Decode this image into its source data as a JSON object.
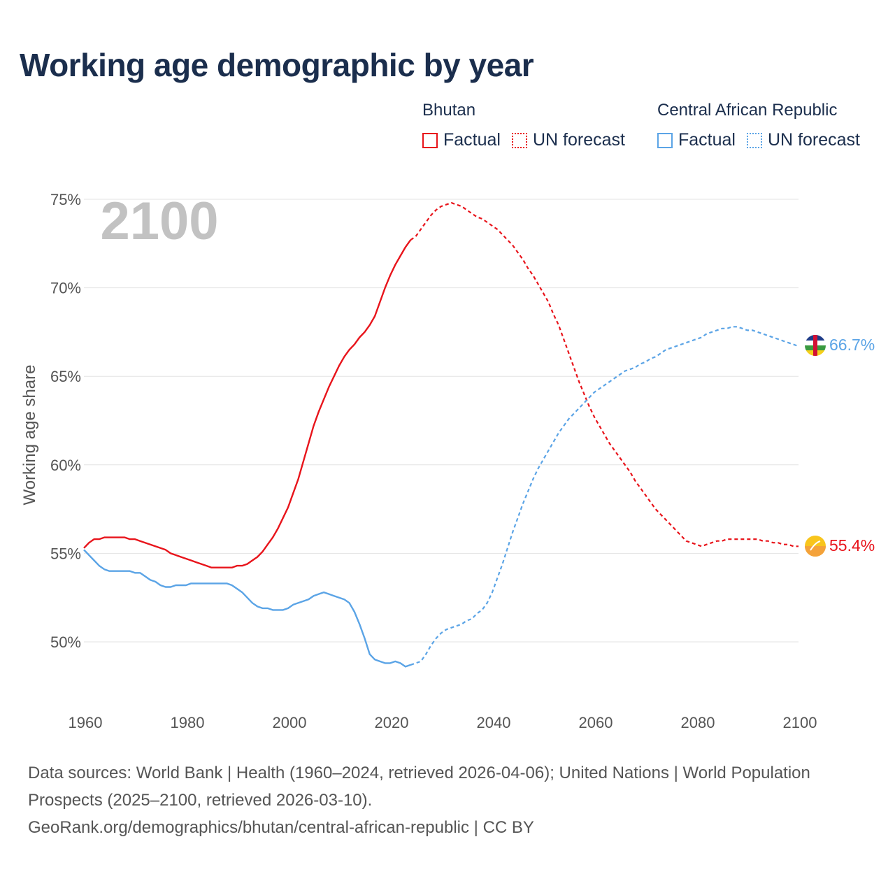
{
  "title": "Working age demographic by year",
  "legend": [
    {
      "country": "Bhutan",
      "factual_label": "Factual",
      "forecast_label": "UN forecast",
      "color": "#e8141b"
    },
    {
      "country": "Central African Republic",
      "factual_label": "Factual",
      "forecast_label": "UN forecast",
      "color": "#5ba4e6"
    }
  ],
  "year_watermark": "2100",
  "sources": {
    "line1": "Data sources: World Bank | Health (1960–2024, retrieved 2026-04-06); United Nations | World Population Prospects (2025–2100, retrieved 2026-03-10).",
    "line2": "GeoRank.org/demographics/bhutan/central-african-republic | CC BY"
  },
  "chart_data": {
    "type": "line",
    "title": "Working age demographic by year",
    "xlabel": "",
    "ylabel": "Working age share",
    "xlim": [
      1960,
      2100
    ],
    "ylim": [
      46.5,
      75
    ],
    "x_ticks": [
      1960,
      1980,
      2000,
      2020,
      2040,
      2060,
      2080,
      2100
    ],
    "x_tick_labels": [
      "1960",
      "1980",
      "2000",
      "2020",
      "2040",
      "2060",
      "2080",
      "2100"
    ],
    "y_ticks": [
      50,
      55,
      60,
      65,
      70,
      75
    ],
    "y_tick_labels": [
      "50%",
      "55%",
      "60%",
      "65%",
      "70%",
      "75%"
    ],
    "grid": true,
    "forecast_start": 2024,
    "series": [
      {
        "name": "Bhutan",
        "color": "#e8141b",
        "end_label": "55.4%",
        "points": [
          [
            1960,
            55.3
          ],
          [
            1961,
            55.6
          ],
          [
            1962,
            55.8
          ],
          [
            1963,
            55.8
          ],
          [
            1964,
            55.9
          ],
          [
            1965,
            55.9
          ],
          [
            1966,
            55.9
          ],
          [
            1967,
            55.9
          ],
          [
            1968,
            55.9
          ],
          [
            1969,
            55.8
          ],
          [
            1970,
            55.8
          ],
          [
            1971,
            55.7
          ],
          [
            1972,
            55.6
          ],
          [
            1973,
            55.5
          ],
          [
            1974,
            55.4
          ],
          [
            1975,
            55.3
          ],
          [
            1976,
            55.2
          ],
          [
            1977,
            55.0
          ],
          [
            1978,
            54.9
          ],
          [
            1979,
            54.8
          ],
          [
            1980,
            54.7
          ],
          [
            1981,
            54.6
          ],
          [
            1982,
            54.5
          ],
          [
            1983,
            54.4
          ],
          [
            1984,
            54.3
          ],
          [
            1985,
            54.2
          ],
          [
            1986,
            54.2
          ],
          [
            1987,
            54.2
          ],
          [
            1988,
            54.2
          ],
          [
            1989,
            54.2
          ],
          [
            1990,
            54.3
          ],
          [
            1991,
            54.3
          ],
          [
            1992,
            54.4
          ],
          [
            1993,
            54.6
          ],
          [
            1994,
            54.8
          ],
          [
            1995,
            55.1
          ],
          [
            1996,
            55.5
          ],
          [
            1997,
            55.9
          ],
          [
            1998,
            56.4
          ],
          [
            1999,
            57.0
          ],
          [
            2000,
            57.6
          ],
          [
            2001,
            58.4
          ],
          [
            2002,
            59.2
          ],
          [
            2003,
            60.2
          ],
          [
            2004,
            61.2
          ],
          [
            2005,
            62.2
          ],
          [
            2006,
            63.0
          ],
          [
            2007,
            63.7
          ],
          [
            2008,
            64.4
          ],
          [
            2009,
            65.0
          ],
          [
            2010,
            65.6
          ],
          [
            2011,
            66.1
          ],
          [
            2012,
            66.5
          ],
          [
            2013,
            66.8
          ],
          [
            2014,
            67.2
          ],
          [
            2015,
            67.5
          ],
          [
            2016,
            67.9
          ],
          [
            2017,
            68.4
          ],
          [
            2018,
            69.2
          ],
          [
            2019,
            70.0
          ],
          [
            2020,
            70.7
          ],
          [
            2021,
            71.3
          ],
          [
            2022,
            71.8
          ],
          [
            2023,
            72.3
          ],
          [
            2024,
            72.7
          ],
          [
            2025,
            72.9
          ],
          [
            2026,
            73.3
          ],
          [
            2027,
            73.7
          ],
          [
            2028,
            74.1
          ],
          [
            2029,
            74.4
          ],
          [
            2030,
            74.6
          ],
          [
            2031,
            74.7
          ],
          [
            2032,
            74.8
          ],
          [
            2033,
            74.7
          ],
          [
            2034,
            74.6
          ],
          [
            2035,
            74.4
          ],
          [
            2036,
            74.2
          ],
          [
            2037,
            74.0
          ],
          [
            2038,
            73.9
          ],
          [
            2039,
            73.7
          ],
          [
            2040,
            73.5
          ],
          [
            2041,
            73.3
          ],
          [
            2042,
            73.0
          ],
          [
            2043,
            72.7
          ],
          [
            2044,
            72.4
          ],
          [
            2045,
            72.0
          ],
          [
            2046,
            71.6
          ],
          [
            2047,
            71.1
          ],
          [
            2048,
            70.7
          ],
          [
            2049,
            70.2
          ],
          [
            2050,
            69.7
          ],
          [
            2051,
            69.2
          ],
          [
            2052,
            68.5
          ],
          [
            2053,
            67.9
          ],
          [
            2054,
            67.1
          ],
          [
            2055,
            66.3
          ],
          [
            2056,
            65.5
          ],
          [
            2057,
            64.7
          ],
          [
            2058,
            64.0
          ],
          [
            2059,
            63.3
          ],
          [
            2060,
            62.7
          ],
          [
            2061,
            62.2
          ],
          [
            2062,
            61.7
          ],
          [
            2063,
            61.2
          ],
          [
            2064,
            60.8
          ],
          [
            2065,
            60.4
          ],
          [
            2066,
            60.0
          ],
          [
            2067,
            59.6
          ],
          [
            2068,
            59.1
          ],
          [
            2069,
            58.7
          ],
          [
            2070,
            58.3
          ],
          [
            2071,
            57.9
          ],
          [
            2072,
            57.5
          ],
          [
            2073,
            57.2
          ],
          [
            2074,
            56.9
          ],
          [
            2075,
            56.6
          ],
          [
            2076,
            56.3
          ],
          [
            2077,
            56.0
          ],
          [
            2078,
            55.7
          ],
          [
            2079,
            55.6
          ],
          [
            2080,
            55.5
          ],
          [
            2081,
            55.4
          ],
          [
            2082,
            55.5
          ],
          [
            2083,
            55.6
          ],
          [
            2084,
            55.7
          ],
          [
            2085,
            55.7
          ],
          [
            2086,
            55.8
          ],
          [
            2087,
            55.8
          ],
          [
            2088,
            55.8
          ],
          [
            2089,
            55.8
          ],
          [
            2090,
            55.8
          ],
          [
            2091,
            55.8
          ],
          [
            2092,
            55.8
          ],
          [
            2093,
            55.7
          ],
          [
            2094,
            55.7
          ],
          [
            2095,
            55.6
          ],
          [
            2096,
            55.6
          ],
          [
            2097,
            55.5
          ],
          [
            2098,
            55.5
          ],
          [
            2099,
            55.4
          ],
          [
            2100,
            55.4
          ]
        ]
      },
      {
        "name": "Central African Republic",
        "color": "#5ba4e6",
        "end_label": "66.7%",
        "points": [
          [
            1960,
            55.2
          ],
          [
            1961,
            54.9
          ],
          [
            1962,
            54.6
          ],
          [
            1963,
            54.3
          ],
          [
            1964,
            54.1
          ],
          [
            1965,
            54.0
          ],
          [
            1966,
            54.0
          ],
          [
            1967,
            54.0
          ],
          [
            1968,
            54.0
          ],
          [
            1969,
            54.0
          ],
          [
            1970,
            53.9
          ],
          [
            1971,
            53.9
          ],
          [
            1972,
            53.7
          ],
          [
            1973,
            53.5
          ],
          [
            1974,
            53.4
          ],
          [
            1975,
            53.2
          ],
          [
            1976,
            53.1
          ],
          [
            1977,
            53.1
          ],
          [
            1978,
            53.2
          ],
          [
            1979,
            53.2
          ],
          [
            1980,
            53.2
          ],
          [
            1981,
            53.3
          ],
          [
            1982,
            53.3
          ],
          [
            1983,
            53.3
          ],
          [
            1984,
            53.3
          ],
          [
            1985,
            53.3
          ],
          [
            1986,
            53.3
          ],
          [
            1987,
            53.3
          ],
          [
            1988,
            53.3
          ],
          [
            1989,
            53.2
          ],
          [
            1990,
            53.0
          ],
          [
            1991,
            52.8
          ],
          [
            1992,
            52.5
          ],
          [
            1993,
            52.2
          ],
          [
            1994,
            52.0
          ],
          [
            1995,
            51.9
          ],
          [
            1996,
            51.9
          ],
          [
            1997,
            51.8
          ],
          [
            1998,
            51.8
          ],
          [
            1999,
            51.8
          ],
          [
            2000,
            51.9
          ],
          [
            2001,
            52.1
          ],
          [
            2002,
            52.2
          ],
          [
            2003,
            52.3
          ],
          [
            2004,
            52.4
          ],
          [
            2005,
            52.6
          ],
          [
            2006,
            52.7
          ],
          [
            2007,
            52.8
          ],
          [
            2008,
            52.7
          ],
          [
            2009,
            52.6
          ],
          [
            2010,
            52.5
          ],
          [
            2011,
            52.4
          ],
          [
            2012,
            52.2
          ],
          [
            2013,
            51.7
          ],
          [
            2014,
            51.0
          ],
          [
            2015,
            50.2
          ],
          [
            2016,
            49.3
          ],
          [
            2017,
            49.0
          ],
          [
            2018,
            48.9
          ],
          [
            2019,
            48.8
          ],
          [
            2020,
            48.8
          ],
          [
            2021,
            48.9
          ],
          [
            2022,
            48.8
          ],
          [
            2023,
            48.6
          ],
          [
            2024,
            48.7
          ],
          [
            2025,
            48.8
          ],
          [
            2026,
            48.9
          ],
          [
            2027,
            49.3
          ],
          [
            2028,
            49.8
          ],
          [
            2029,
            50.2
          ],
          [
            2030,
            50.5
          ],
          [
            2031,
            50.7
          ],
          [
            2032,
            50.8
          ],
          [
            2033,
            50.9
          ],
          [
            2034,
            51.0
          ],
          [
            2035,
            51.2
          ],
          [
            2036,
            51.3
          ],
          [
            2037,
            51.6
          ],
          [
            2038,
            51.8
          ],
          [
            2039,
            52.2
          ],
          [
            2040,
            52.8
          ],
          [
            2041,
            53.6
          ],
          [
            2042,
            54.4
          ],
          [
            2043,
            55.3
          ],
          [
            2044,
            56.2
          ],
          [
            2045,
            57.0
          ],
          [
            2046,
            57.8
          ],
          [
            2047,
            58.5
          ],
          [
            2048,
            59.2
          ],
          [
            2049,
            59.8
          ],
          [
            2050,
            60.3
          ],
          [
            2051,
            60.8
          ],
          [
            2052,
            61.3
          ],
          [
            2053,
            61.8
          ],
          [
            2054,
            62.2
          ],
          [
            2055,
            62.6
          ],
          [
            2056,
            62.9
          ],
          [
            2057,
            63.2
          ],
          [
            2058,
            63.5
          ],
          [
            2059,
            63.8
          ],
          [
            2060,
            64.1
          ],
          [
            2061,
            64.3
          ],
          [
            2062,
            64.5
          ],
          [
            2063,
            64.7
          ],
          [
            2064,
            64.9
          ],
          [
            2065,
            65.1
          ],
          [
            2066,
            65.3
          ],
          [
            2067,
            65.4
          ],
          [
            2068,
            65.5
          ],
          [
            2069,
            65.7
          ],
          [
            2070,
            65.8
          ],
          [
            2071,
            66.0
          ],
          [
            2072,
            66.1
          ],
          [
            2073,
            66.3
          ],
          [
            2074,
            66.5
          ],
          [
            2075,
            66.6
          ],
          [
            2076,
            66.7
          ],
          [
            2077,
            66.8
          ],
          [
            2078,
            66.9
          ],
          [
            2079,
            67.0
          ],
          [
            2080,
            67.1
          ],
          [
            2081,
            67.2
          ],
          [
            2082,
            67.4
          ],
          [
            2083,
            67.5
          ],
          [
            2084,
            67.6
          ],
          [
            2085,
            67.7
          ],
          [
            2086,
            67.7
          ],
          [
            2087,
            67.8
          ],
          [
            2088,
            67.8
          ],
          [
            2089,
            67.7
          ],
          [
            2090,
            67.6
          ],
          [
            2091,
            67.6
          ],
          [
            2092,
            67.5
          ],
          [
            2093,
            67.4
          ],
          [
            2094,
            67.3
          ],
          [
            2095,
            67.2
          ],
          [
            2096,
            67.1
          ],
          [
            2097,
            67.0
          ],
          [
            2098,
            66.9
          ],
          [
            2099,
            66.8
          ],
          [
            2100,
            66.7
          ]
        ]
      }
    ]
  }
}
